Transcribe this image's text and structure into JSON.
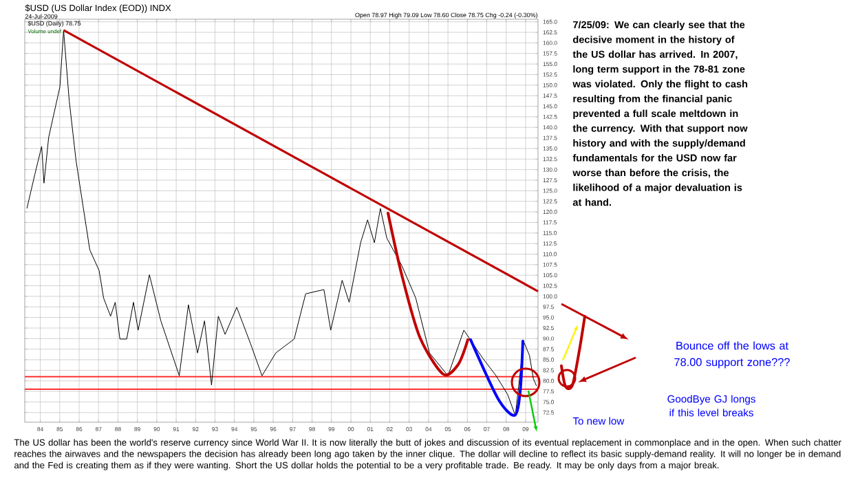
{
  "chart_data": {
    "type": "line",
    "title": "$USD (US Dollar Index (EOD)) INDX",
    "subtitle": "24-Jul-2009",
    "xlim": [
      1983.2,
      2009.64
    ],
    "ylim": [
      70.2,
      165.6
    ],
    "xticks": [
      {
        "value": 1984,
        "label": "84"
      },
      {
        "value": 1985,
        "label": "85"
      },
      {
        "value": 1986,
        "label": "86"
      },
      {
        "value": 1987,
        "label": "87"
      },
      {
        "value": 1988,
        "label": "88"
      },
      {
        "value": 1989,
        "label": "89"
      },
      {
        "value": 1990,
        "label": "90"
      },
      {
        "value": 1991,
        "label": "91"
      },
      {
        "value": 1992,
        "label": "92"
      },
      {
        "value": 1993,
        "label": "93"
      },
      {
        "value": 1994,
        "label": "94"
      },
      {
        "value": 1995,
        "label": "95"
      },
      {
        "value": 1996,
        "label": "96"
      },
      {
        "value": 1997,
        "label": "97"
      },
      {
        "value": 1998,
        "label": "98"
      },
      {
        "value": 1999,
        "label": "99"
      },
      {
        "value": 2000,
        "label": "00"
      },
      {
        "value": 2001,
        "label": "01"
      },
      {
        "value": 2002,
        "label": "02"
      },
      {
        "value": 2003,
        "label": "03"
      },
      {
        "value": 2004,
        "label": "04"
      },
      {
        "value": 2005,
        "label": "05"
      },
      {
        "value": 2006,
        "label": "06"
      },
      {
        "value": 2007,
        "label": "07"
      },
      {
        "value": 2008,
        "label": "08"
      },
      {
        "value": 2009,
        "label": "09"
      }
    ],
    "yticks": [
      {
        "value": 72.5,
        "label": "72.5"
      },
      {
        "value": 75,
        "label": "75.0"
      },
      {
        "value": 77.5,
        "label": "77.5"
      },
      {
        "value": 80,
        "label": "80.0"
      },
      {
        "value": 82.5,
        "label": "82.5"
      },
      {
        "value": 85,
        "label": "85.0"
      },
      {
        "value": 87.5,
        "label": "87.5"
      },
      {
        "value": 90,
        "label": "90.0"
      },
      {
        "value": 92.5,
        "label": "92.5"
      },
      {
        "value": 95,
        "label": "95.0"
      },
      {
        "value": 97.5,
        "label": "97.5"
      },
      {
        "value": 100,
        "label": "100.0"
      },
      {
        "value": 102.5,
        "label": "102.5"
      },
      {
        "value": 105,
        "label": "105.0"
      },
      {
        "value": 107.5,
        "label": "107.5"
      },
      {
        "value": 110,
        "label": "110.0"
      },
      {
        "value": 112.5,
        "label": "112.5"
      },
      {
        "value": 115,
        "label": "115.0"
      },
      {
        "value": 117.5,
        "label": "117.5"
      },
      {
        "value": 120,
        "label": "120.0"
      },
      {
        "value": 122.5,
        "label": "122.5"
      },
      {
        "value": 125,
        "label": "125.0"
      },
      {
        "value": 127.5,
        "label": "127.5"
      },
      {
        "value": 130,
        "label": "130.0"
      },
      {
        "value": 132.5,
        "label": "132.5"
      },
      {
        "value": 135,
        "label": "135.0"
      },
      {
        "value": 137.5,
        "label": "137.5"
      },
      {
        "value": 140,
        "label": "140.0"
      },
      {
        "value": 142.5,
        "label": "142.5"
      },
      {
        "value": 145,
        "label": "145.0"
      },
      {
        "value": 147.5,
        "label": "147.5"
      },
      {
        "value": 150,
        "label": "150.0"
      },
      {
        "value": 152.5,
        "label": "152.5"
      },
      {
        "value": 155,
        "label": "155.0"
      },
      {
        "value": 157.5,
        "label": "157.5"
      },
      {
        "value": 160,
        "label": "160.0"
      },
      {
        "value": 162.5,
        "label": "162.5"
      },
      {
        "value": 165,
        "label": "165.0"
      }
    ],
    "grid": true,
    "series": [
      {
        "color": "#000000",
        "x": [
          1983.31,
          1983.72,
          1984.07,
          1984.19,
          1984.43,
          1985.01,
          1985.2,
          1985.49,
          1985.84,
          1986.2,
          1986.55,
          1987.03,
          1987.26,
          1987.62,
          1987.86,
          1988.1,
          1988.45,
          1988.8,
          1989.04,
          1989.62,
          1990.21,
          1991.16,
          1991.63,
          1992.1,
          1992.46,
          1992.82,
          1993.17,
          1993.52,
          1994.12,
          1994.83,
          1995.42,
          1996.13,
          1997.08,
          1997.67,
          1998.61,
          1998.96,
          1999.55,
          1999.91,
          2000.5,
          2000.86,
          2001.21,
          2001.52,
          2001.85,
          2002.63,
          2003.34,
          2004.05,
          2005.0,
          2005.82,
          2006.77,
          2007.48,
          2008.07,
          2008.47,
          2008.9,
          2009.2,
          2009.4,
          2009.56
        ],
        "values": [
          120.8,
          128.9,
          135.5,
          126.8,
          137.6,
          149.6,
          163,
          146.3,
          132.2,
          121.4,
          111,
          106.1,
          99.6,
          95.3,
          98.6,
          89.9,
          89.9,
          98.6,
          92.0,
          105.1,
          94.2,
          81.2,
          98.0,
          86.6,
          94.2,
          79,
          95.3,
          91.0,
          97.4,
          88.8,
          81.2,
          86.6,
          89.9,
          100.6,
          101.6,
          92.0,
          103.8,
          98.6,
          112.7,
          118.1,
          112.7,
          120.8,
          113.8,
          107.2,
          99.6,
          86.6,
          81.2,
          92.0,
          85.5,
          81.2,
          76.8,
          71.8,
          89.3,
          86,
          80.5,
          78.8
        ]
      },
      {
        "type": "line",
        "color": "#c00000",
        "x": [
          1985.2,
          2009.64
        ],
        "values": [
          163,
          101.2
        ]
      }
    ],
    "ref_lines": [
      {
        "axis": "y",
        "value": 81,
        "color": "#ff3030"
      },
      {
        "axis": "y",
        "value": 78,
        "color": "#ff3030"
      }
    ],
    "annotations": [
      "Open 78.97  High 79.09  Low 78.60  Close 78.75  Chg -0.24 (-0.30%)",
      "$USD (Daily) 78.75",
      "Volume undef",
      "7/25/09:  We can clearly see that the decisive moment in the history of the US dollar has arrived.  In 2007, long term support in the 78-81 zone was violated.  Only the flight to cash resulting from the financial panic prevented a full scale meltdown in the currency.  With that support now history and with the supply/demand fundamentals for the USD now far worse than before the crisis, the likelihood of a major devaluation is at hand.",
      "Bounce off the lows at 78.00 support zone???",
      "GoodBye GJ longs if this level breaks",
      "To new low",
      "The US dollar has been the world's reserve currency since World War II. It is now literally the butt of jokes and discussion of its eventual replacement in commonplace and in the open. When such chatter reaches the airwaves and the newspapers the decision has already been long ago taken by the inner clique. The dollar will decline to reflect its basic supply-demand reality. It will no longer be in demand and the Fed is creating them as if they were wanting. Short the US dollar holds the potential to be a very profitable trade. Be ready. It may be only days from a major break."
    ]
  }
}
